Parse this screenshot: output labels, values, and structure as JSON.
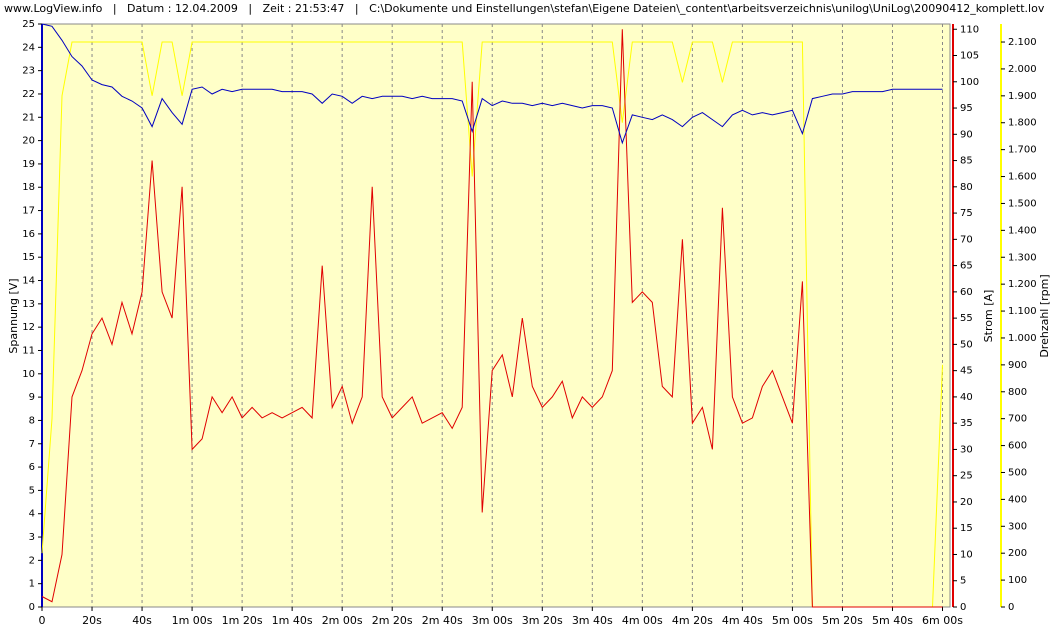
{
  "chart_data": {
    "type": "line",
    "title": "www.LogView.info   |   Datum : 12.04.2009   |   Zeit : 21:53:47   |   C:\\Dokumente und Einstellungen\\stefan\\Eigene Dateien\\_content\\arbeitsverzeichnis\\unilog\\UniLog\\20090412_komplett.lov",
    "y_label": "Spannung [V]",
    "y2_label": "Strom [A]",
    "y3_label": "Drehzahl [rpm]",
    "background": "#ffffc8",
    "grid": true,
    "xlim": [
      0,
      363
    ],
    "xticks": [
      0,
      {
        "value": 20,
        "label": "20s"
      },
      {
        "value": 40,
        "label": "40s"
      },
      {
        "value": 60,
        "label": "1m 00s"
      },
      {
        "value": 80,
        "label": "1m 20s"
      },
      {
        "value": 100,
        "label": "1m 40s"
      },
      {
        "value": 120,
        "label": "2m 00s"
      },
      {
        "value": 140,
        "label": "2m 20s"
      },
      {
        "value": 160,
        "label": "2m 40s"
      },
      {
        "value": 180,
        "label": "3m 00s"
      },
      {
        "value": 200,
        "label": "3m 20s"
      },
      {
        "value": 220,
        "label": "3m 40s"
      },
      {
        "value": 240,
        "label": "4m 00s"
      },
      {
        "value": 260,
        "label": "4m 20s"
      },
      {
        "value": 280,
        "label": "4m 40s"
      },
      {
        "value": 300,
        "label": "5m 00s"
      },
      {
        "value": 320,
        "label": "5m 20s"
      },
      {
        "value": 340,
        "label": "5m 40s"
      },
      {
        "value": 360,
        "label": "6m 00s"
      }
    ],
    "ylim": [
      0,
      25
    ],
    "yticks": [
      0,
      1,
      2,
      3,
      4,
      5,
      6,
      7,
      8,
      9,
      10,
      11,
      12,
      13,
      14,
      15,
      16,
      17,
      18,
      19,
      20,
      21,
      22,
      23,
      24,
      25
    ],
    "y2lim": [
      0,
      111
    ],
    "y2ticks": [
      0,
      5,
      10,
      15,
      20,
      25,
      30,
      35,
      40,
      45,
      50,
      55,
      60,
      65,
      70,
      75,
      80,
      85,
      90,
      95,
      100,
      105,
      110
    ],
    "y3lim": [
      0,
      2167
    ],
    "y3ticks": [
      0,
      100,
      200,
      300,
      400,
      500,
      600,
      700,
      800,
      900,
      {
        "value": 1000,
        "label": "1.000"
      },
      {
        "value": 1100,
        "label": "1.100"
      },
      {
        "value": 1200,
        "label": "1.200"
      },
      {
        "value": 1300,
        "label": "1.300"
      },
      {
        "value": 1400,
        "label": "1.400"
      },
      {
        "value": 1500,
        "label": "1.500"
      },
      {
        "value": 1600,
        "label": "1.600"
      },
      {
        "value": 1700,
        "label": "1.700"
      },
      {
        "value": 1800,
        "label": "1.800"
      },
      {
        "value": 1900,
        "label": "1.900"
      },
      {
        "value": 2000,
        "label": "2.000"
      },
      {
        "value": 2100,
        "label": "2.100"
      }
    ],
    "x": [
      0,
      4,
      8,
      12,
      16,
      20,
      24,
      28,
      32,
      36,
      40,
      44,
      48,
      52,
      56,
      60,
      64,
      68,
      72,
      76,
      80,
      84,
      88,
      92,
      96,
      100,
      104,
      108,
      112,
      116,
      120,
      124,
      128,
      132,
      136,
      140,
      144,
      148,
      152,
      156,
      160,
      164,
      168,
      172,
      176,
      180,
      184,
      188,
      192,
      196,
      200,
      204,
      208,
      212,
      216,
      220,
      224,
      228,
      232,
      236,
      240,
      244,
      248,
      252,
      256,
      260,
      264,
      268,
      272,
      276,
      280,
      284,
      288,
      292,
      296,
      300,
      304,
      308,
      312,
      316,
      320,
      324,
      328,
      332,
      336,
      340,
      344,
      348,
      352,
      356,
      360
    ],
    "series": [
      {
        "axis": "y3",
        "color": "#ffff00",
        "values": [
          200,
          700,
          1900,
          2100,
          2100,
          2100,
          2100,
          2100,
          2100,
          2100,
          2100,
          1900,
          2100,
          2100,
          1900,
          2100,
          2100,
          2100,
          2100,
          2100,
          2100,
          2100,
          2100,
          2100,
          2100,
          2100,
          2100,
          2100,
          2100,
          2100,
          2100,
          2100,
          2100,
          2100,
          2100,
          2100,
          2100,
          2100,
          2100,
          2100,
          2100,
          2100,
          2100,
          1600,
          2100,
          2100,
          2100,
          2100,
          2100,
          2100,
          2100,
          2100,
          2100,
          2100,
          2100,
          2100,
          2100,
          2100,
          1800,
          2100,
          2100,
          2100,
          2100,
          2100,
          1950,
          2100,
          2100,
          2100,
          1950,
          2100,
          2100,
          2100,
          2100,
          2100,
          2100,
          2100,
          2100,
          0,
          0,
          0,
          0,
          0,
          0,
          0,
          0,
          0,
          0,
          0,
          0,
          0,
          900
        ]
      },
      {
        "axis": "y2",
        "color": "#e00000",
        "values": [
          2,
          1,
          10,
          40,
          45,
          52,
          55,
          50,
          58,
          52,
          60,
          85,
          60,
          55,
          80,
          30,
          32,
          40,
          37,
          40,
          36,
          38,
          36,
          37,
          36,
          37,
          38,
          36,
          65,
          38,
          42,
          35,
          40,
          80,
          40,
          36,
          38,
          40,
          35,
          36,
          37,
          34,
          38,
          100,
          18,
          45,
          48,
          40,
          55,
          42,
          38,
          40,
          43,
          36,
          40,
          38,
          40,
          45,
          110,
          58,
          60,
          58,
          42,
          40,
          70,
          35,
          38,
          30,
          76,
          40,
          35,
          36,
          42,
          45,
          40,
          35,
          62,
          0,
          0,
          0,
          0,
          0,
          0,
          0,
          0,
          0,
          0,
          0,
          0,
          0,
          0
        ]
      },
      {
        "axis": "y",
        "color": "#0000c0",
        "values": [
          25,
          24.9,
          24.3,
          23.6,
          23.2,
          22.6,
          22.4,
          22.3,
          21.9,
          21.7,
          21.4,
          20.6,
          21.8,
          21.2,
          20.7,
          22.2,
          22.3,
          22.0,
          22.2,
          22.1,
          22.2,
          22.2,
          22.2,
          22.2,
          22.1,
          22.1,
          22.1,
          22.0,
          21.6,
          22.0,
          21.9,
          21.6,
          21.9,
          21.8,
          21.9,
          21.9,
          21.9,
          21.8,
          21.9,
          21.8,
          21.8,
          21.8,
          21.7,
          20.4,
          21.8,
          21.5,
          21.7,
          21.6,
          21.6,
          21.5,
          21.6,
          21.5,
          21.6,
          21.5,
          21.4,
          21.5,
          21.5,
          21.4,
          19.9,
          21.1,
          21.0,
          20.9,
          21.1,
          20.9,
          20.6,
          21.0,
          21.2,
          20.9,
          20.6,
          21.1,
          21.3,
          21.1,
          21.2,
          21.1,
          21.2,
          21.3,
          20.3,
          21.8,
          21.9,
          22.0,
          22.0,
          22.1,
          22.1,
          22.1,
          22.1,
          22.2,
          22.2,
          22.2,
          22.2,
          22.2,
          22.2
        ]
      }
    ]
  }
}
